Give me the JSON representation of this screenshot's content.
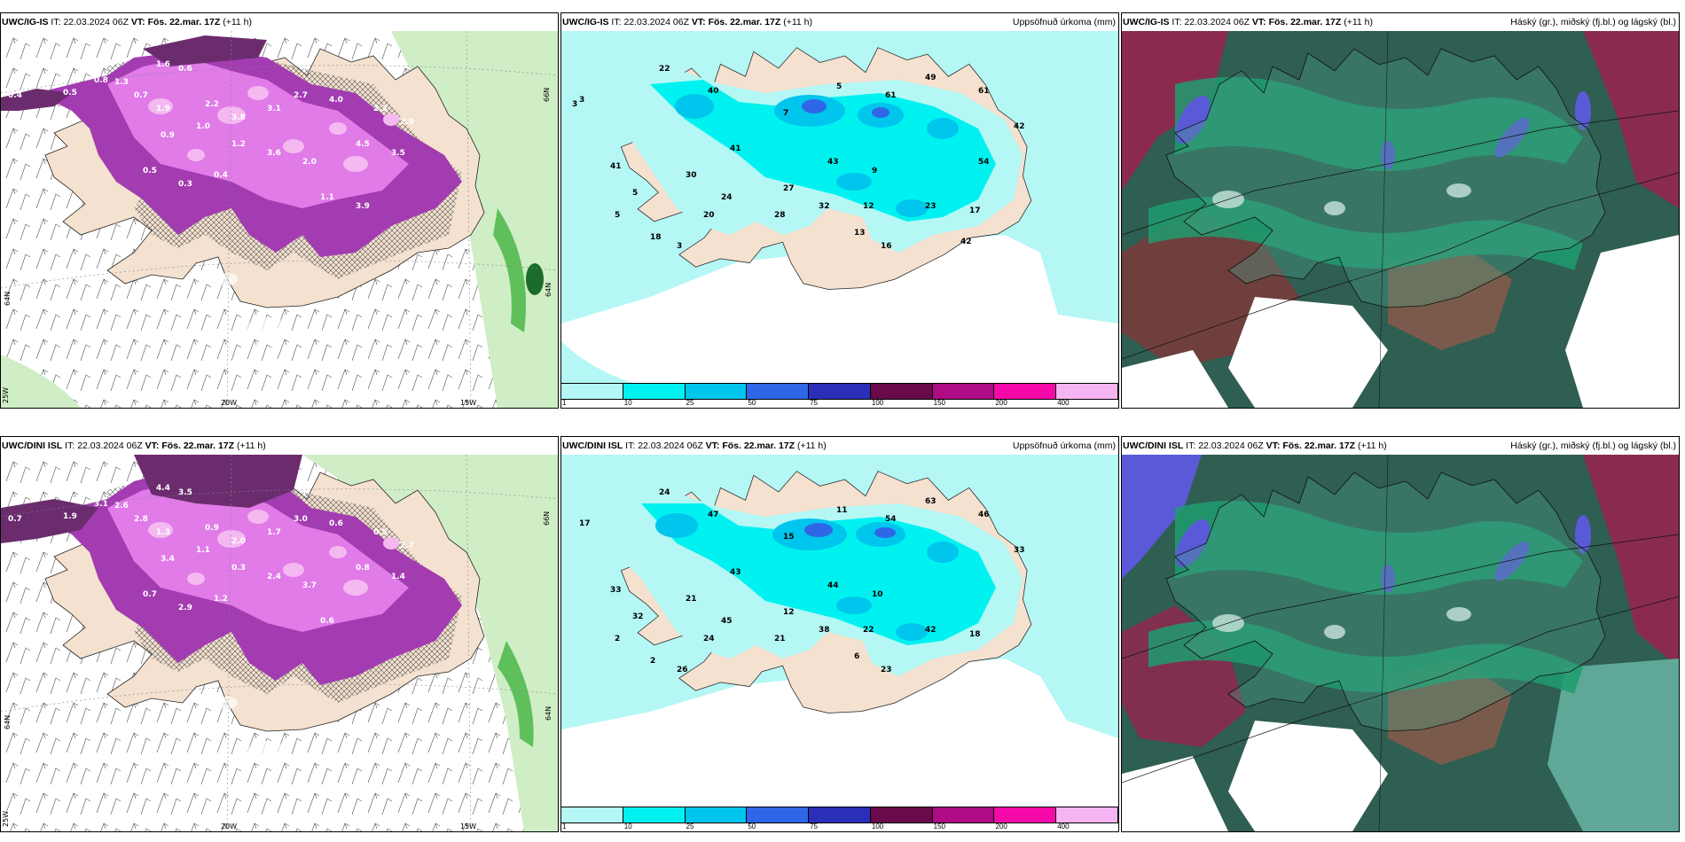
{
  "panels": [
    {
      "id": "p1",
      "model": "UWC/IG-IS",
      "it_label": "IT:",
      "it_value": "22.03.2024 06Z",
      "vt_label": "VT:",
      "vt_value": "Fös. 22.mar. 17Z",
      "lead": "(+11 h)",
      "right": "",
      "axis": {
        "lon1": "20W",
        "lon2": "15W",
        "lat1": "66N",
        "lat2": "64N",
        "corner": "25W"
      },
      "values": [
        "0.4",
        "0.5",
        "0.8",
        "1.3",
        "1.6",
        "0.6",
        "0.7",
        "1.9",
        "2.2",
        "3.8",
        "3.1",
        "2.7",
        "4.0",
        "2.3",
        "2.9",
        "0.9",
        "1.0",
        "1.2",
        "3.6",
        "2.0",
        "4.5",
        "3.5",
        "0.5",
        "0.3",
        "0.4",
        "1.1",
        "3.9"
      ]
    },
    {
      "id": "p2",
      "model": "UWC/IG-IS",
      "it_label": "IT:",
      "it_value": "22.03.2024 06Z",
      "vt_label": "VT:",
      "vt_value": "Fös. 22.mar. 17Z",
      "lead": "(+11 h)",
      "right": "Uppsöfnuð úrkoma (mm)",
      "values": [
        "3",
        "22",
        "40",
        "7",
        "5",
        "61",
        "49",
        "61",
        "42",
        "41",
        "30",
        "41",
        "43",
        "9",
        "12",
        "20",
        "24",
        "27",
        "32",
        "13",
        "18",
        "5",
        "5",
        "3",
        "17",
        "28",
        "16",
        "23",
        "42",
        "54"
      ],
      "colorbar": {
        "ticks": [
          "1",
          "10",
          "25",
          "50",
          "75",
          "100",
          "150",
          "200",
          "400"
        ],
        "colors": [
          "#b4f7f5",
          "#00f2f0",
          "#00c5ec",
          "#2f66e8",
          "#2a2fb8",
          "#6a0a4a",
          "#ae0b84",
          "#f40aa8",
          "#f6b4f2"
        ]
      }
    },
    {
      "id": "p3",
      "model": "UWC/IG-IS",
      "it_label": "IT:",
      "it_value": "22.03.2024 06Z",
      "vt_label": "VT:",
      "vt_value": "Fös. 22.mar. 17Z",
      "lead": "(+11 h)",
      "right": "Háský (gr.), miðský (fj.bl.) og lágský (bl.)"
    },
    {
      "id": "p4",
      "model": "UWC/DINI ISL",
      "it_label": "IT:",
      "it_value": "22.03.2024 06Z",
      "vt_label": "VT:",
      "vt_value": "Fös. 22.mar. 17Z",
      "lead": "(+11 h)",
      "right": "",
      "axis": {
        "lon1": "20W",
        "lon2": "15W",
        "lat1": "66N",
        "lat2": "64N",
        "corner": "25W"
      },
      "values": [
        "0.7",
        "1.9",
        "3.1",
        "2.6",
        "4.4",
        "3.5",
        "2.8",
        "1.3",
        "0.9",
        "2.0",
        "1.7",
        "3.0",
        "0.6",
        "0.5",
        "2.7",
        "3.4",
        "1.1",
        "0.3",
        "2.4",
        "3.7",
        "0.8",
        "1.4",
        "0.7",
        "2.9",
        "1.2",
        "0.6"
      ]
    },
    {
      "id": "p5",
      "model": "UWC/DINI ISL",
      "it_label": "IT:",
      "it_value": "22.03.2024 06Z",
      "vt_label": "VT:",
      "vt_value": "Fös. 22.mar. 17Z",
      "lead": "(+11 h)",
      "right": "Uppsöfnuð úrkoma (mm)",
      "values": [
        "17",
        "24",
        "47",
        "15",
        "11",
        "54",
        "63",
        "46",
        "33",
        "33",
        "21",
        "43",
        "44",
        "10",
        "22",
        "24",
        "45",
        "12",
        "38",
        "6",
        "2",
        "2",
        "32",
        "26",
        "18",
        "21",
        "23",
        "42"
      ],
      "colorbar": {
        "ticks": [
          "1",
          "10",
          "25",
          "50",
          "75",
          "100",
          "150",
          "200",
          "400"
        ],
        "colors": [
          "#b4f7f5",
          "#00f2f0",
          "#00c5ec",
          "#2f66e8",
          "#2a2fb8",
          "#6a0a4a",
          "#ae0b84",
          "#f40aa8",
          "#f6b4f2"
        ]
      }
    },
    {
      "id": "p6",
      "model": "UWC/DINI ISL",
      "it_label": "IT:",
      "it_value": "22.03.2024 06Z",
      "vt_label": "VT:",
      "vt_value": "Fös. 22.mar. 17Z",
      "lead": "(+11 h)",
      "right": "Háský (gr.), miðský (fj.bl.) og lágský (bl.)"
    }
  ],
  "colors": {
    "land": "#f4e1cf",
    "precip_light": "#b4f7f5",
    "precip_cyan": "#00f2f0",
    "precip_blue": "#00c5ec",
    "snow_dark": "#6b2c6e",
    "snow_mid": "#a23cb0",
    "snow_bright": "#e07be8",
    "snow_light": "#f4b9f0",
    "green_band": "#cfeec6",
    "high_cloud": "#1e9c6e",
    "mid_cloud": "#8a2a4e",
    "low_cloud": "#5a5ad8"
  }
}
